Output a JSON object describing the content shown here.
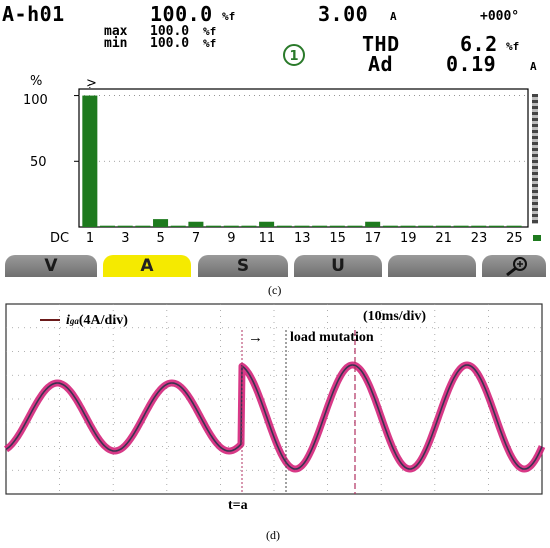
{
  "header": {
    "channel": "A-h01",
    "percent_value": "100.0",
    "percent_unit": "%f",
    "max_label": "max",
    "max_value": "100.0",
    "max_unit": "%f",
    "min_label": "min",
    "min_value": "100.0",
    "min_unit": "%f",
    "current_value": "3.00",
    "current_unit": "A",
    "phase_value": "+000°",
    "mode_badge": "1",
    "thd_label": "THD",
    "thd_value": "6.2",
    "thd_unit": "%f",
    "ad_label": "Ad",
    "ad_value": "0.19",
    "ad_unit": "A"
  },
  "spectrum": {
    "ylabel": "%",
    "yticks": [
      "100",
      "50"
    ],
    "xticks": [
      "DC",
      "1",
      "3",
      "5",
      "7",
      "9",
      "11",
      "13",
      "15",
      "17",
      "19",
      "21",
      "23",
      "25"
    ],
    "cursor_marker": ">",
    "bar_color": "#1e7a1e",
    "chart_data": {
      "type": "bar",
      "categories": [
        "1",
        "2",
        "3",
        "4",
        "5",
        "6",
        "7",
        "8",
        "9",
        "10",
        "11",
        "12",
        "13",
        "14",
        "15",
        "16",
        "17",
        "18",
        "19",
        "20",
        "21",
        "22",
        "23",
        "24",
        "25"
      ],
      "values": [
        100,
        1,
        1,
        1,
        6,
        1,
        4,
        1,
        1,
        1,
        4,
        1,
        1,
        1,
        1,
        1,
        4,
        1,
        1,
        1,
        1,
        1,
        1,
        1,
        1
      ],
      "ylim": [
        0,
        105
      ]
    }
  },
  "function_keys": [
    {
      "label": "V",
      "active": false
    },
    {
      "label": "A",
      "active": true
    },
    {
      "label": "S",
      "active": false
    },
    {
      "label": "U",
      "active": false
    },
    {
      "label": "",
      "active": false
    },
    {
      "label": "",
      "active": false,
      "icon": "zoom-icon"
    }
  ],
  "captions": {
    "c": "(c)",
    "d": "(d)"
  },
  "oscilloscope": {
    "legend_label": "i",
    "legend_subscript": "ga",
    "legend_scale": "(4A/div)",
    "time_scale": "(10ms/div)",
    "event_arrow": "→",
    "event_label": "load mutation",
    "t_label": "t=a",
    "trace_color": "#d4247a",
    "core_color": "#3a3350",
    "legend_color": "#6b1a1a"
  }
}
